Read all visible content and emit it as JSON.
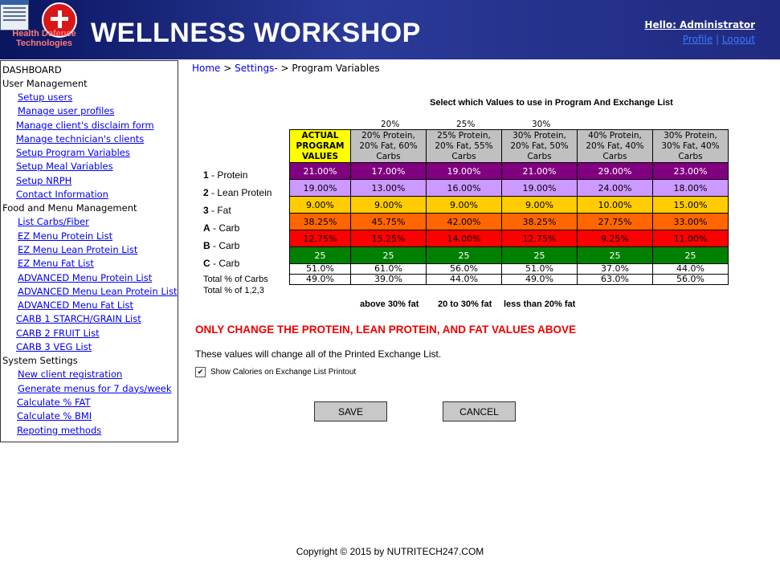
{
  "header": {
    "title": "WELLNESS WORKSHOP",
    "logo_text": "Health Defense Technologies",
    "hello": "Hello: Administrator",
    "profile_link": "Profile",
    "separator": "|",
    "logout_link": "Logout"
  },
  "sidebar": {
    "dashboard": "DASHBOARD",
    "user_mgmt": "User Management",
    "user_items": [
      "Setup users",
      "Manage user profiles",
      "Manage client's disclaim form",
      "Manage technician's clients",
      "Setup Program Variables",
      "Setup Meal Variables",
      "Setup NRPH",
      "Contact Information"
    ],
    "food_mgmt": "Food and Menu Management",
    "food_items": [
      "List Carbs/Fiber",
      "EZ Menu Protein List",
      "EZ Menu Lean Protein List",
      "EZ Menu Fat List",
      "ADVANCED Menu Protein List",
      "ADVANCED Menu Lean Protein List",
      "ADVANCED Menu Fat List",
      "CARB 1 STARCH/GRAIN List",
      "CARB 2 FRUIT List",
      "CARB 3 VEG List"
    ],
    "system": "System Settings",
    "system_items": [
      "New client registration",
      "Generate menus for 7 days/week",
      "Calculate % FAT",
      "Calculate % BMI",
      "Repoting methods"
    ]
  },
  "breadcrumb": {
    "home": "Home",
    "sep1": " > ",
    "settings": "Settings-",
    "sep2": " > ",
    "current": "Program Variables"
  },
  "table": {
    "title": "Select which Values to use in Program And Exchange List",
    "pct_labels": [
      "20%",
      "25%",
      "30%"
    ],
    "columns": [
      {
        "l1": "ACTUAL",
        "l2": "PROGRAM",
        "l3": "VALUES"
      },
      {
        "l1": "20% Protein,",
        "l2": "20% Fat, 60%",
        "l3": "Carbs"
      },
      {
        "l1": "25% Protein,",
        "l2": "20% Fat, 55%",
        "l3": "Carbs"
      },
      {
        "l1": "30% Protein,",
        "l2": "20% Fat, 50%",
        "l3": "Carbs"
      },
      {
        "l1": "40% Protein,",
        "l2": "20% Fat, 40%",
        "l3": "Carbs"
      },
      {
        "l1": "30% Protein,",
        "l2": "30% Fat, 40%",
        "l3": "Carbs"
      }
    ],
    "rows": [
      {
        "num": "1",
        "label": " - Protein",
        "bg": "#800080",
        "fg": "#ffffff",
        "values": [
          "21.00%",
          "17.00%",
          "19.00%",
          "21.00%",
          "29.00%",
          "23.00%"
        ]
      },
      {
        "num": "2",
        "label": " - Lean Protein",
        "bg": "#cc99ff",
        "fg": "#000000",
        "values": [
          "19.00%",
          "13.00%",
          "16.00%",
          "19.00%",
          "24.00%",
          "18.00%"
        ]
      },
      {
        "num": "3",
        "label": " - Fat",
        "bg": "#ffcc00",
        "fg": "#000000",
        "values": [
          "9.00%",
          "9.00%",
          "9.00%",
          "9.00%",
          "10.00%",
          "15.00%"
        ]
      },
      {
        "num": "A",
        "label": " - Carb",
        "bg": "#ff6600",
        "fg": "#000000",
        "values": [
          "38.25%",
          "45.75%",
          "42.00%",
          "38.25%",
          "27.75%",
          "33.00%"
        ]
      },
      {
        "num": "B",
        "label": " - Carb",
        "bg": "#ff0000",
        "fg": "#000000",
        "values": [
          "12.75%",
          "15.25%",
          "14.00%",
          "12.75%",
          "9.25%",
          "11.00%"
        ]
      },
      {
        "num": "C",
        "label": " - Carb",
        "bg": "#008000",
        "fg": "#ffffff",
        "values": [
          "25",
          "25",
          "25",
          "25",
          "25",
          "25"
        ]
      }
    ],
    "totals": [
      {
        "label": "Total % of Carbs",
        "values": [
          "51.0%",
          "61.0%",
          "56.0%",
          "51.0%",
          "37.0%",
          "44.0%"
        ]
      },
      {
        "label": "Total % of 1,2,3",
        "values": [
          "49.0%",
          "39.0%",
          "44.0%",
          "49.0%",
          "63.0%",
          "56.0%"
        ]
      }
    ],
    "footer_labels": [
      "above 30% fat",
      "20 to 30% fat",
      "less than 20% fat"
    ]
  },
  "warning": "ONLY CHANGE THE PROTEIN, LEAN PROTEIN, AND FAT VALUES ABOVE",
  "info": "These values will change all of the Printed Exchange List.",
  "show_calories": {
    "label": "Show Calories on Exchange List Printout",
    "checked": true,
    "mark": "✔"
  },
  "buttons": {
    "save": "SAVE",
    "cancel": "CANCEL"
  },
  "copyright": "Copyright © 2015 by NUTRITECH247.COM"
}
